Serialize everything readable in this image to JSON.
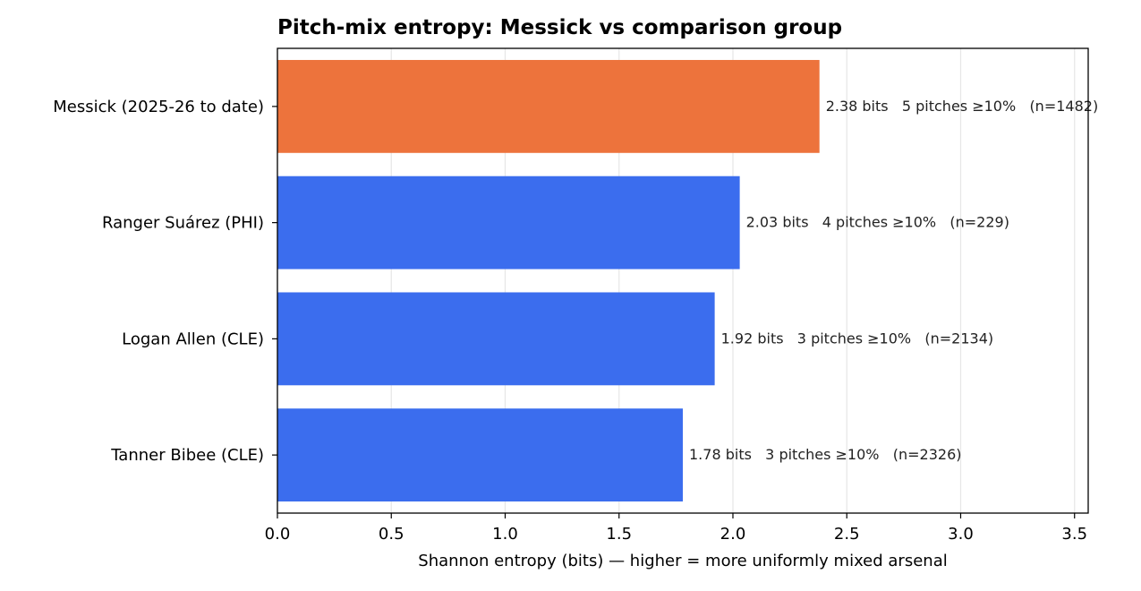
{
  "chart_data": {
    "type": "bar",
    "orientation": "horizontal",
    "title": "Pitch-mix entropy: Messick vs comparison group",
    "xlabel": "Shannon entropy (bits) — higher = more uniformly mixed arsenal",
    "ylabel": "",
    "xlim": [
      0,
      3.56
    ],
    "xticks": [
      0.0,
      0.5,
      1.0,
      1.5,
      2.0,
      2.5,
      3.0,
      3.5
    ],
    "xtick_labels": [
      "0.0",
      "0.5",
      "1.0",
      "1.5",
      "2.0",
      "2.5",
      "3.0",
      "3.5"
    ],
    "grid": "x",
    "categories": [
      "Messick (2025-26 to date)",
      "Ranger Suárez (PHI)",
      "Logan Allen (CLE)",
      "Tanner Bibee (CLE)"
    ],
    "values": [
      2.38,
      2.03,
      1.92,
      1.78
    ],
    "annotations": [
      "2.38 bits   5 pitches ≥10%   (n=1482)",
      "2.03 bits   4 pitches ≥10%   (n=229)",
      "1.92 bits   3 pitches ≥10%   (n=2134)",
      "1.78 bits   3 pitches ≥10%   (n=2326)"
    ],
    "colors": [
      "#ED733C",
      "#3B6DEE",
      "#3B6DEE",
      "#3B6DEE"
    ]
  }
}
